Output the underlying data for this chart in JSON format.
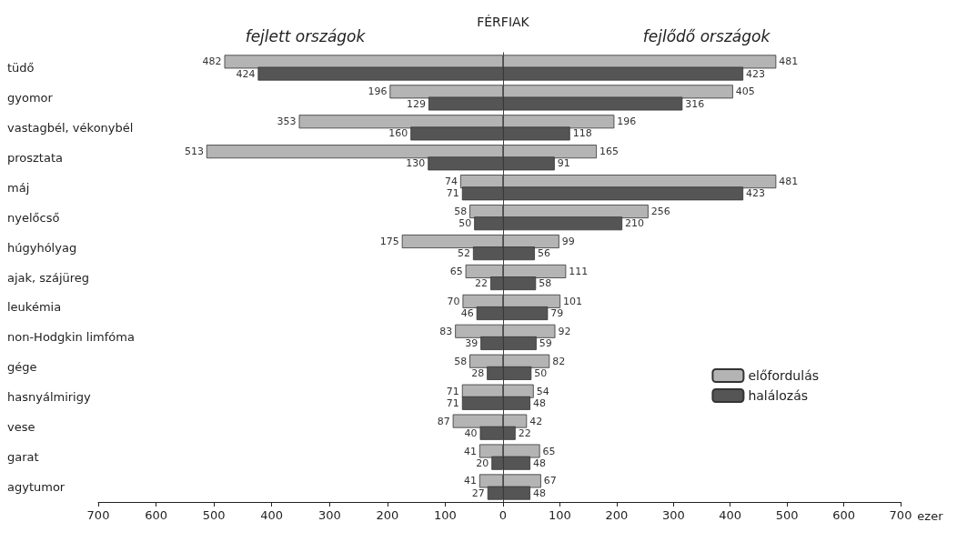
{
  "chart_data": [
    {
      "type": "bar",
      "orientation": "horizontal",
      "title": "fejlett országok",
      "annotations": [
        "FÉRFIAK"
      ],
      "data_labels": true,
      "categories": [
        "tüdő",
        "gyomor",
        "vastagbél, vékonybél",
        "prosztata",
        "máj",
        "nyelőcső",
        "húgyhólyag",
        "ajak, szájüreg",
        "leukémia",
        "non-Hodgkin limfóma",
        "gége",
        "hasnyálmirigy",
        "vese",
        "garat",
        "agytumor"
      ],
      "series": [
        {
          "color": "#b4b4b4",
          "values": [
            482,
            196,
            353,
            513,
            74,
            58,
            175,
            65,
            70,
            83,
            58,
            71,
            87,
            41,
            41
          ]
        },
        {
          "color": "#555555",
          "values": [
            424,
            129,
            160,
            130,
            71,
            50,
            52,
            22,
            46,
            39,
            28,
            71,
            40,
            20,
            27
          ]
        }
      ],
      "xlim": [
        700,
        0
      ],
      "xticks": [
        700,
        600,
        500,
        400,
        300,
        200,
        100,
        0
      ],
      "legend": false,
      "grid": false
    },
    {
      "type": "bar",
      "orientation": "horizontal",
      "title": "fejlődő országok",
      "xlabel": "ezer",
      "data_labels": true,
      "tick_labels": "x",
      "categories": [
        null,
        null,
        null,
        null,
        null,
        null,
        null,
        null,
        null,
        null,
        null,
        null,
        null,
        null,
        null
      ],
      "series": [
        {
          "name": "előfordulás",
          "color": "#b4b4b4",
          "values": [
            481,
            405,
            196,
            165,
            481,
            256,
            99,
            111,
            101,
            92,
            82,
            54,
            42,
            65,
            67
          ]
        },
        {
          "name": "halálozás",
          "color": "#555555",
          "values": [
            423,
            316,
            118,
            91,
            423,
            210,
            56,
            58,
            79,
            59,
            50,
            48,
            22,
            48,
            48
          ]
        }
      ],
      "xlim": [
        0,
        700
      ],
      "xticks": [
        {
          "value": 0,
          "label": null
        },
        100,
        200,
        300,
        400,
        500,
        600,
        700
      ],
      "legend": "bottom right",
      "grid": false
    }
  ]
}
